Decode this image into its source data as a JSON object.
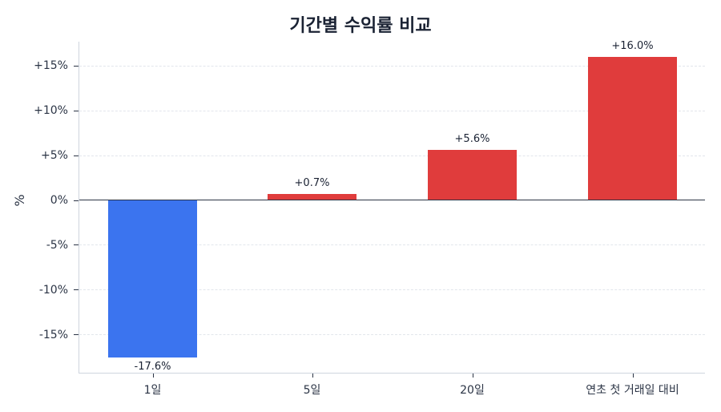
{
  "chart_data": {
    "type": "bar",
    "title": "기간별 수익률 비교",
    "xlabel": "",
    "ylabel": "%",
    "categories": [
      "1일",
      "5일",
      "20일",
      "연초 첫 거래일 대비"
    ],
    "values": [
      -17.6,
      0.7,
      5.6,
      16.0
    ],
    "value_labels": [
      "-17.6%",
      "+0.7%",
      "+5.6%",
      "+16.0%"
    ],
    "bar_colors": [
      "#3b74ef",
      "#e03c3c",
      "#e03c3c",
      "#e03c3c"
    ],
    "ylim": [
      -19,
      18
    ],
    "yticks": [
      15,
      10,
      5,
      0,
      -5,
      -10,
      -15
    ],
    "ytick_labels": [
      "+15%",
      "+10%",
      "+5%",
      "0%",
      "-5%",
      "-10%",
      "-15%"
    ],
    "grid": "y dashed",
    "legend": "none",
    "colors": {
      "positive": "#e03c3c",
      "negative": "#3b74ef",
      "zero_line": "#2b3445"
    }
  }
}
